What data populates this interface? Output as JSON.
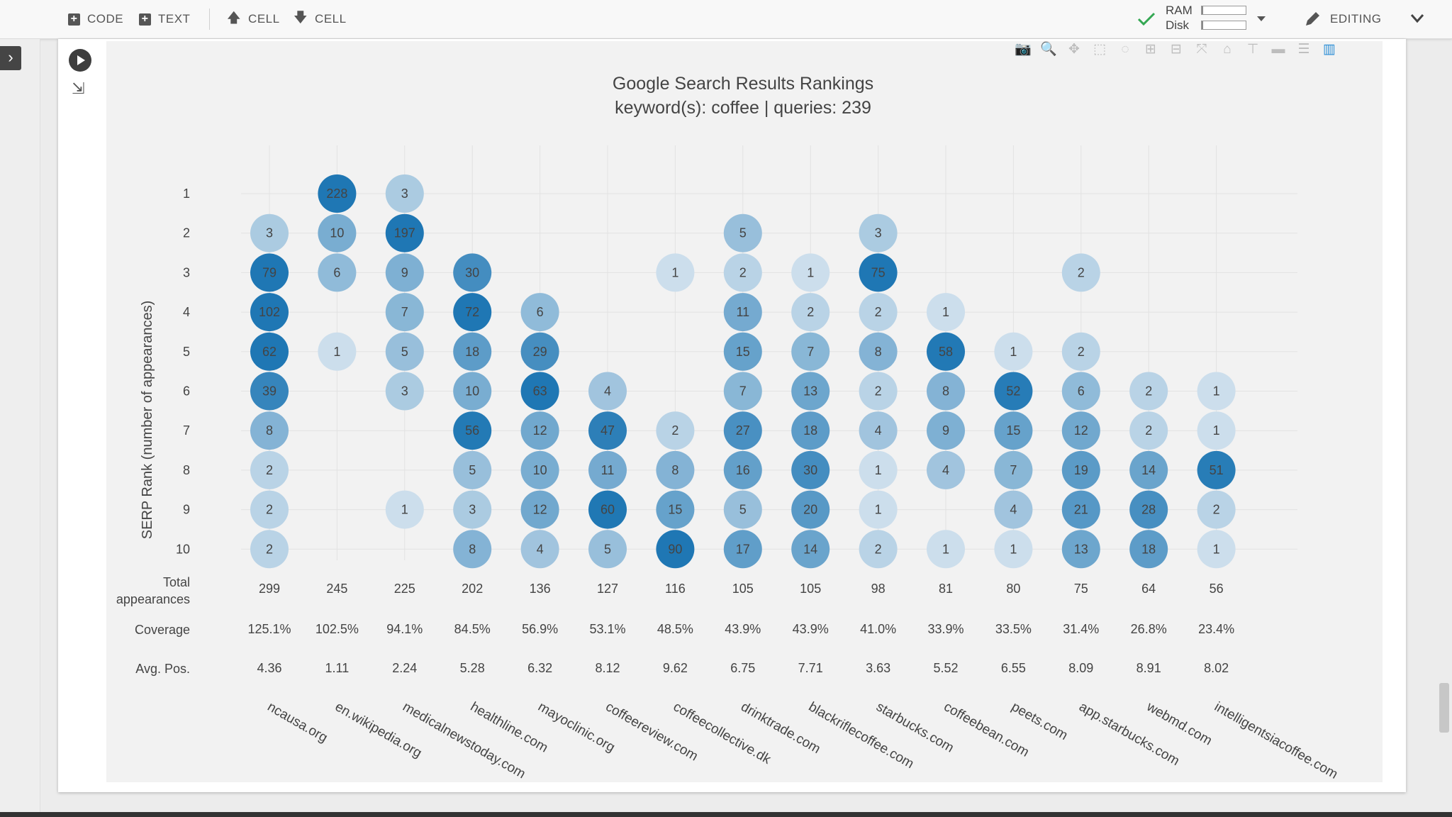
{
  "toolbar": {
    "code_label": "CODE",
    "text_label": "TEXT",
    "cell_up_label": "CELL",
    "cell_down_label": "CELL",
    "ram_label": "RAM",
    "disk_label": "Disk",
    "ram_fill_pct": 4,
    "disk_fill_pct": 4,
    "editing_label": "EDITING"
  },
  "colors": {
    "accent": "#2e8fd6",
    "check": "#34a853",
    "bubble_max": "#1f77b4",
    "bubble_min": "#e8eff5"
  },
  "modebar": [
    "camera-icon",
    "zoom-icon",
    "pan-icon",
    "box-select-icon",
    "lasso-select-icon",
    "zoom-in-icon",
    "zoom-out-icon",
    "autoscale-icon",
    "reset-axes-icon",
    "spike-lines-icon",
    "hover-closest-icon",
    "hover-compare-icon",
    "plotly-logo-icon"
  ],
  "chart_data": {
    "type": "scatter",
    "title": "Google Search Results Rankings",
    "subtitle": "keyword(s): coffee | queries: 239",
    "ylabel": "SERP Rank (number of appearances)",
    "y_ticks": [
      "1",
      "2",
      "3",
      "4",
      "5",
      "6",
      "7",
      "8",
      "9",
      "10"
    ],
    "domains": [
      "ncausa.org",
      "en.wikipedia.org",
      "medicalnewstoday.com",
      "healthline.com",
      "mayoclinic.org",
      "coffeereview.com",
      "coffeecollective.dk",
      "drinktrade.com",
      "blackriflecoffee.com",
      "starbucks.com",
      "coffeebean.com",
      "peets.com",
      "app.starbucks.com",
      "webmd.com",
      "intelligentsiacoffee.com"
    ],
    "points": [
      {
        "domain": "ncausa.org",
        "ranks": [
          2,
          3,
          4,
          5,
          6,
          7,
          8,
          9,
          10
        ],
        "counts": [
          3,
          79,
          102,
          62,
          39,
          8,
          2,
          2,
          2
        ]
      },
      {
        "domain": "en.wikipedia.org",
        "ranks": [
          1,
          2,
          3,
          5
        ],
        "counts": [
          228,
          10,
          6,
          1
        ]
      },
      {
        "domain": "medicalnewstoday.com",
        "ranks": [
          1,
          2,
          3,
          4,
          5,
          6,
          9
        ],
        "counts": [
          3,
          197,
          9,
          7,
          5,
          3,
          1
        ]
      },
      {
        "domain": "healthline.com",
        "ranks": [
          3,
          4,
          5,
          6,
          7,
          8,
          9,
          10
        ],
        "counts": [
          30,
          72,
          18,
          10,
          56,
          5,
          3,
          8
        ]
      },
      {
        "domain": "mayoclinic.org",
        "ranks": [
          4,
          5,
          6,
          7,
          8,
          9,
          10
        ],
        "counts": [
          6,
          29,
          63,
          12,
          10,
          12,
          4
        ]
      },
      {
        "domain": "coffeereview.com",
        "ranks": [
          6,
          7,
          8,
          9,
          10
        ],
        "counts": [
          4,
          47,
          11,
          60,
          5
        ]
      },
      {
        "domain": "coffeecollective.dk",
        "ranks": [
          3,
          7,
          8,
          9,
          10
        ],
        "counts": [
          1,
          2,
          8,
          15,
          90
        ]
      },
      {
        "domain": "drinktrade.com",
        "ranks": [
          2,
          3,
          4,
          5,
          6,
          7,
          8,
          9,
          10
        ],
        "counts": [
          5,
          2,
          11,
          15,
          7,
          27,
          16,
          5,
          17
        ]
      },
      {
        "domain": "blackriflecoffee.com",
        "ranks": [
          3,
          4,
          5,
          6,
          7,
          8,
          9,
          10
        ],
        "counts": [
          1,
          2,
          7,
          13,
          18,
          30,
          20,
          14
        ]
      },
      {
        "domain": "starbucks.com",
        "ranks": [
          2,
          3,
          4,
          5,
          6,
          7,
          8,
          9,
          10
        ],
        "counts": [
          3,
          75,
          2,
          8,
          2,
          4,
          1,
          1,
          2
        ]
      },
      {
        "domain": "coffeebean.com",
        "ranks": [
          4,
          5,
          6,
          7,
          8,
          10
        ],
        "counts": [
          1,
          58,
          8,
          9,
          4,
          1
        ]
      },
      {
        "domain": "peets.com",
        "ranks": [
          5,
          6,
          7,
          8,
          9,
          10
        ],
        "counts": [
          1,
          52,
          15,
          7,
          4,
          1
        ]
      },
      {
        "domain": "app.starbucks.com",
        "ranks": [
          3,
          5,
          6,
          7,
          8,
          9,
          10
        ],
        "counts": [
          2,
          2,
          6,
          12,
          19,
          21,
          13
        ]
      },
      {
        "domain": "webmd.com",
        "ranks": [
          6,
          7,
          8,
          9,
          10
        ],
        "counts": [
          2,
          2,
          14,
          28,
          18
        ]
      },
      {
        "domain": "intelligentsiacoffee.com",
        "ranks": [
          6,
          7,
          8,
          9,
          10
        ],
        "counts": [
          1,
          1,
          51,
          2,
          1
        ]
      }
    ],
    "stats_labels": {
      "total": [
        "Total",
        "appearances"
      ],
      "coverage": "Coverage",
      "avg": "Avg. Pos."
    },
    "total_appearances": [
      299,
      245,
      225,
      202,
      136,
      127,
      116,
      105,
      105,
      98,
      81,
      80,
      75,
      64,
      56
    ],
    "coverage": [
      "125.1%",
      "102.5%",
      "94.1%",
      "84.5%",
      "56.9%",
      "53.1%",
      "48.5%",
      "43.9%",
      "43.9%",
      "41.0%",
      "33.9%",
      "33.5%",
      "31.4%",
      "26.8%",
      "23.4%"
    ],
    "avg_pos": [
      "4.36",
      "1.11",
      "2.24",
      "5.28",
      "6.32",
      "8.12",
      "9.62",
      "6.75",
      "7.71",
      "3.63",
      "5.52",
      "6.55",
      "8.09",
      "8.91",
      "8.02"
    ]
  }
}
